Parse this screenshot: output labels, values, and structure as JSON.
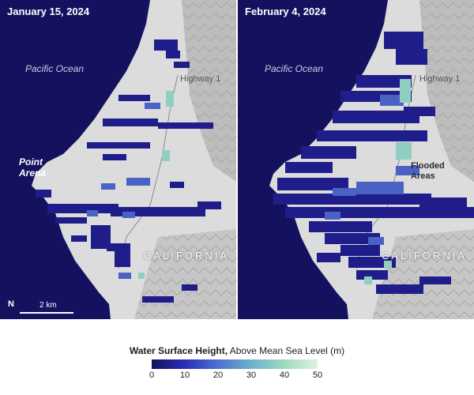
{
  "panels": [
    {
      "date": "January 15, 2024",
      "ocean": "Pacific Ocean",
      "highway": "Highway 1",
      "town": "Point Arena",
      "state": "CALIFORNIA",
      "scale": "2 km",
      "north": "N"
    },
    {
      "date": "February 4, 2024",
      "ocean": "Pacific Ocean",
      "highway": "Highway 1",
      "annotation": "Flooded Areas",
      "state": "CALIFORNIA"
    }
  ],
  "legend": {
    "title_bold": "Water Surface Height,",
    "title_rest": " Above Mean Sea Level (m)",
    "ticks": [
      "0",
      "10",
      "20",
      "30",
      "40",
      "50"
    ],
    "colors": [
      "#14125e",
      "#2b2fb8",
      "#4f6fd0",
      "#6bb3cc",
      "#9fd9c0",
      "#dff3dc"
    ]
  },
  "colors": {
    "ocean": "#14125e",
    "land": "#dcdcdc",
    "water_low": "#1f1d8a",
    "water_mid": "#4a62c4",
    "water_high": "#8fcfc1"
  }
}
